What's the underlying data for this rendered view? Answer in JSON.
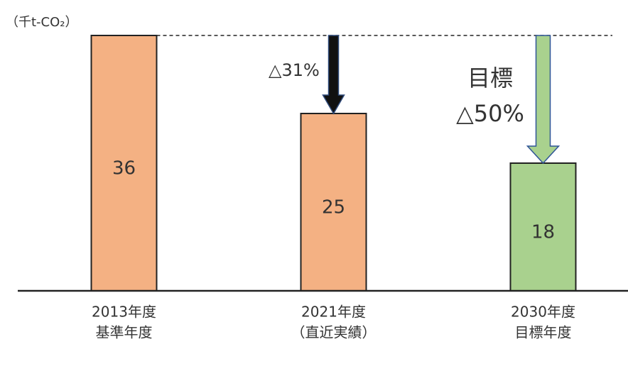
{
  "chart_data": {
    "type": "bar",
    "unit_label": "（千t-CO₂）",
    "categories": [
      [
        "2013年度",
        "基準年度"
      ],
      [
        "2021年度",
        "（直近実績）"
      ],
      [
        "2030年度",
        "目標年度"
      ]
    ],
    "values": [
      36,
      25,
      18
    ],
    "colors": [
      "#f4b183",
      "#f4b183",
      "#a9d18e"
    ],
    "annotations": [
      "△31%",
      "目標",
      "△50%"
    ]
  }
}
